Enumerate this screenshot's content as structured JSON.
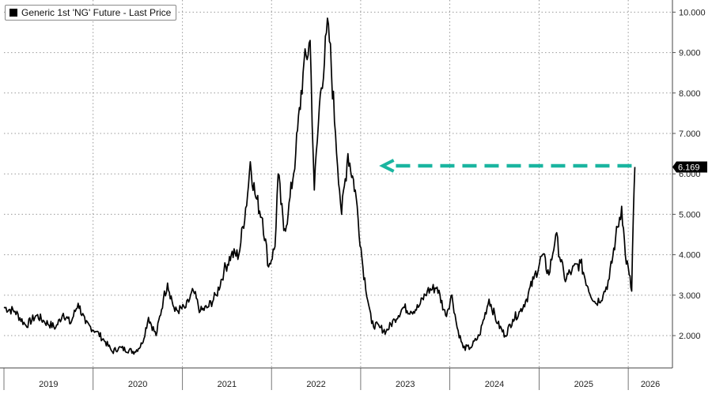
{
  "chart_data": {
    "type": "line",
    "title": "",
    "series": [
      {
        "name": "Generic 1st 'NG' Future - Last Price",
        "color": "#000000",
        "points": [
          [
            "2019-01-01",
            2.7
          ],
          [
            "2019-02-15",
            2.6
          ],
          [
            "2019-04-01",
            2.25
          ],
          [
            "2019-05-15",
            2.5
          ],
          [
            "2019-06-15",
            2.35
          ],
          [
            "2019-08-01",
            2.2
          ],
          [
            "2019-09-01",
            2.55
          ],
          [
            "2019-10-01",
            2.3
          ],
          [
            "2019-11-01",
            2.8
          ],
          [
            "2019-12-01",
            2.3
          ],
          [
            "2020-01-15",
            2.1
          ],
          [
            "2020-02-20",
            1.85
          ],
          [
            "2020-03-20",
            1.6
          ],
          [
            "2020-04-15",
            1.7
          ],
          [
            "2020-06-20",
            1.6
          ],
          [
            "2020-07-20",
            1.8
          ],
          [
            "2020-08-15",
            2.45
          ],
          [
            "2020-09-15",
            2.0
          ],
          [
            "2020-10-15",
            2.9
          ],
          [
            "2020-11-01",
            3.3
          ],
          [
            "2020-12-01",
            2.6
          ],
          [
            "2021-01-15",
            2.7
          ],
          [
            "2021-02-15",
            3.1
          ],
          [
            "2021-03-15",
            2.6
          ],
          [
            "2021-04-15",
            2.7
          ],
          [
            "2021-05-20",
            3.0
          ],
          [
            "2021-06-20",
            3.6
          ],
          [
            "2021-07-20",
            4.0
          ],
          [
            "2021-08-20",
            4.0
          ],
          [
            "2021-09-25",
            5.5
          ],
          [
            "2021-10-06",
            6.3
          ],
          [
            "2021-10-25",
            5.5
          ],
          [
            "2021-11-25",
            4.9
          ],
          [
            "2021-12-20",
            3.7
          ],
          [
            "2022-01-15",
            4.2
          ],
          [
            "2022-01-28",
            6.0
          ],
          [
            "2022-02-20",
            4.6
          ],
          [
            "2022-03-10",
            5.0
          ],
          [
            "2022-04-10",
            6.5
          ],
          [
            "2022-05-10",
            8.5
          ],
          [
            "2022-06-08",
            9.3
          ],
          [
            "2022-06-25",
            5.6
          ],
          [
            "2022-07-20",
            8.0
          ],
          [
            "2022-08-22",
            9.7
          ],
          [
            "2022-09-20",
            7.0
          ],
          [
            "2022-10-15",
            5.0
          ],
          [
            "2022-11-10",
            6.5
          ],
          [
            "2022-12-10",
            5.6
          ],
          [
            "2023-01-10",
            3.7
          ],
          [
            "2023-02-15",
            2.3
          ],
          [
            "2023-03-20",
            2.2
          ],
          [
            "2023-04-15",
            2.1
          ],
          [
            "2023-05-20",
            2.4
          ],
          [
            "2023-06-25",
            2.7
          ],
          [
            "2023-07-25",
            2.6
          ],
          [
            "2023-08-25",
            2.7
          ],
          [
            "2023-10-01",
            3.1
          ],
          [
            "2023-11-10",
            3.2
          ],
          [
            "2023-12-15",
            2.5
          ],
          [
            "2024-01-10",
            3.0
          ],
          [
            "2024-01-31",
            2.2
          ],
          [
            "2024-02-25",
            1.7
          ],
          [
            "2024-03-25",
            1.7
          ],
          [
            "2024-05-01",
            2.0
          ],
          [
            "2024-06-10",
            2.9
          ],
          [
            "2024-07-15",
            2.3
          ],
          [
            "2024-08-15",
            2.0
          ],
          [
            "2024-09-15",
            2.4
          ],
          [
            "2024-10-15",
            2.6
          ],
          [
            "2024-11-10",
            2.9
          ],
          [
            "2024-12-10",
            3.4
          ],
          [
            "2025-01-15",
            4.0
          ],
          [
            "2025-02-10",
            3.5
          ],
          [
            "2025-03-10",
            4.5
          ],
          [
            "2025-04-15",
            3.4
          ],
          [
            "2025-05-15",
            3.6
          ],
          [
            "2025-06-20",
            3.8
          ],
          [
            "2025-07-20",
            3.2
          ],
          [
            "2025-08-20",
            2.8
          ],
          [
            "2025-09-20",
            3.0
          ],
          [
            "2025-10-15",
            3.4
          ],
          [
            "2025-11-10",
            4.4
          ],
          [
            "2025-12-05",
            5.2
          ],
          [
            "2025-12-20",
            4.0
          ],
          [
            "2026-01-05",
            3.5
          ],
          [
            "2026-01-15",
            3.1
          ],
          [
            "2026-01-22",
            5.0
          ],
          [
            "2026-01-28",
            6.169
          ]
        ]
      }
    ],
    "last_value_label": "6.169",
    "y_ticks": [
      "2.000",
      "3.000",
      "4.000",
      "5.000",
      "6.000",
      "7.000",
      "8.000",
      "9.000",
      "10.000"
    ],
    "ylim": [
      1.2,
      10.3
    ],
    "x_ticks": [
      "2019",
      "2020",
      "2021",
      "2022",
      "2023",
      "2024",
      "2025",
      "2026"
    ],
    "xlim": [
      "2019-01-01",
      "2026-07-01"
    ],
    "grid": true,
    "legend_position": "top-left",
    "annotations": [
      {
        "type": "arrow",
        "style": "dashed",
        "color": "#1ab5a0",
        "direction": "left",
        "y": 6.2,
        "x_from": "2026-01-15",
        "x_to": "2023-04-01"
      }
    ]
  }
}
